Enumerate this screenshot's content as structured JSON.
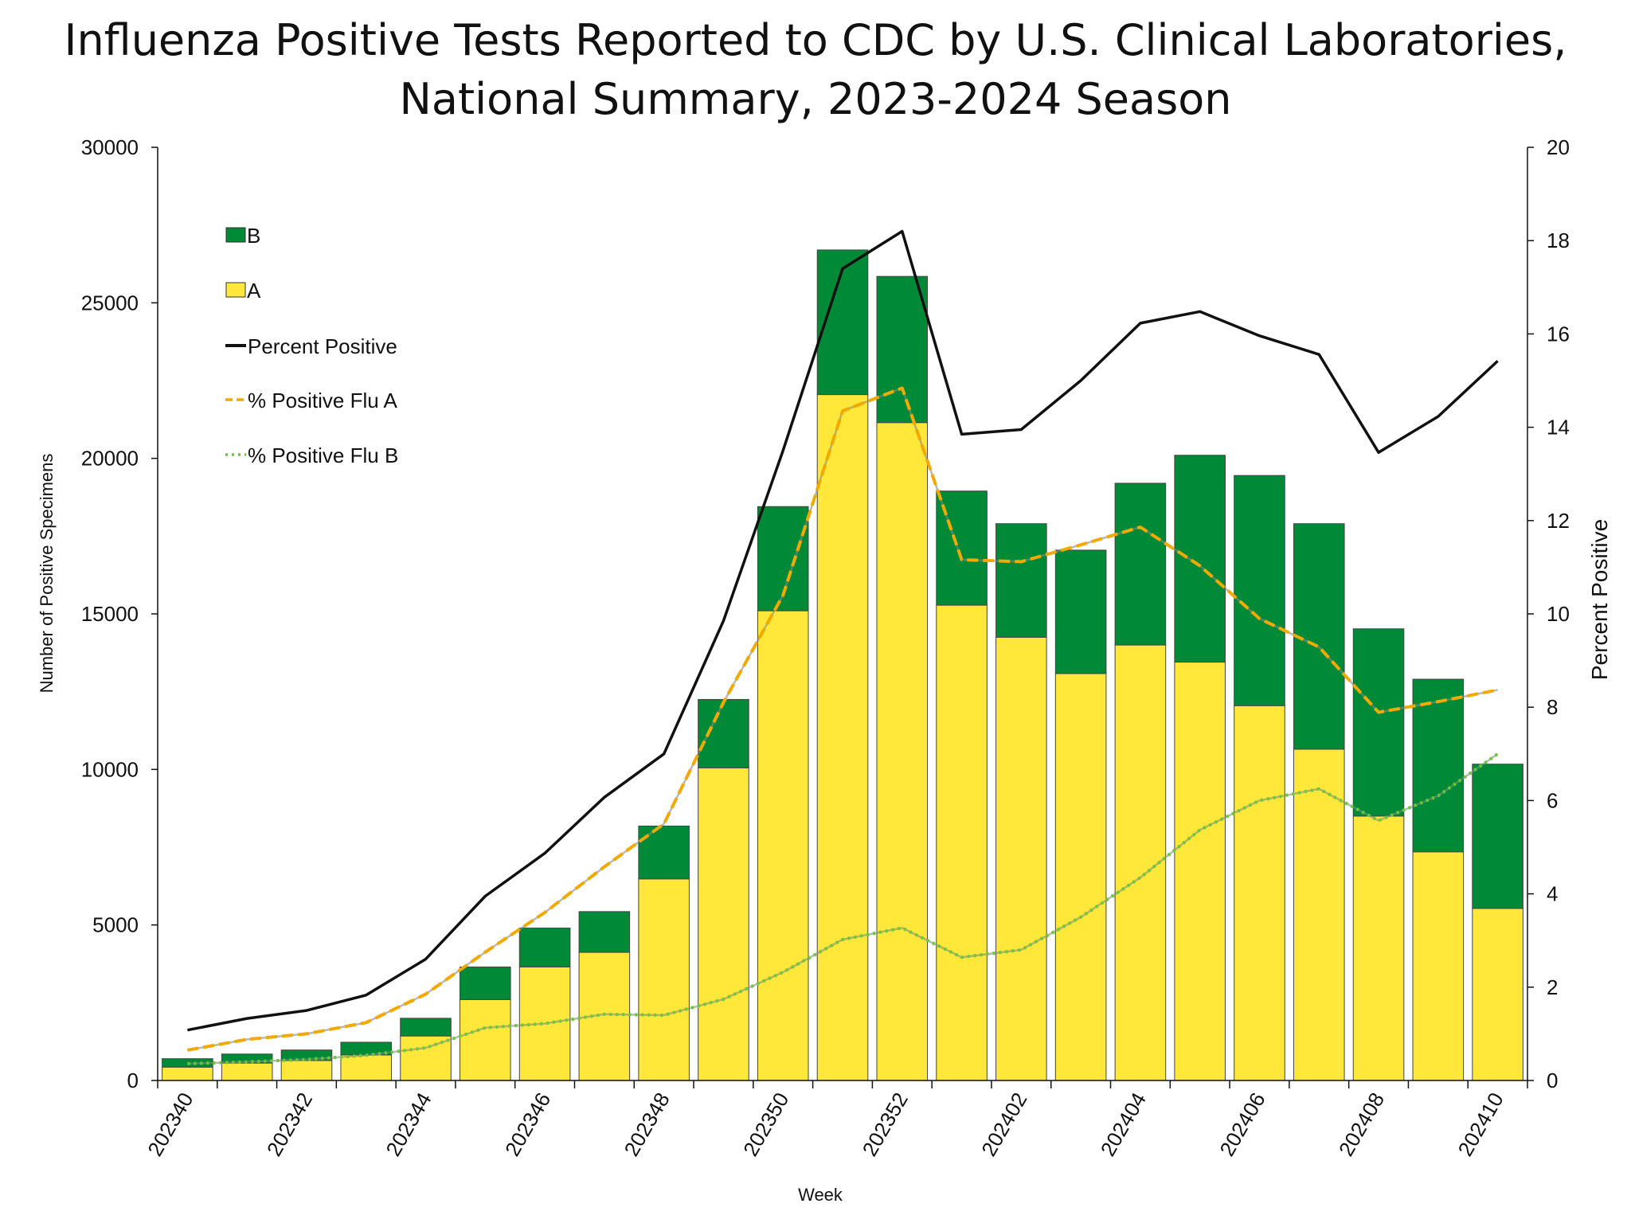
{
  "chart_data": {
    "type": "bar",
    "title_line1": "Influenza Positive Tests Reported to CDC by U.S. Clinical Laboratories,",
    "title_line2": "National Summary, 2023-2024 Season",
    "xlabel": "Week",
    "ylabel": "Number of Positive Specimens",
    "y2label": "Percent Positive",
    "ylim": [
      0,
      30000
    ],
    "y2lim": [
      0,
      20
    ],
    "yticks": [
      "0",
      "5000",
      "10000",
      "15000",
      "20000",
      "25000",
      "30000"
    ],
    "y2ticks": [
      "0",
      "2",
      "4",
      "6",
      "8",
      "10",
      "12",
      "14",
      "16",
      "18",
      "20"
    ],
    "grid": false,
    "legend_placement": "top-left",
    "categories": [
      "202340",
      "202341",
      "202342",
      "202343",
      "202344",
      "202345",
      "202346",
      "202347",
      "202348",
      "202349",
      "202350",
      "202351",
      "202352",
      "202401",
      "202402",
      "202403",
      "202404",
      "202405",
      "202406",
      "202407",
      "202408",
      "202409",
      "202410"
    ],
    "xtick_labels": [
      "202340",
      "202342",
      "202344",
      "202346",
      "202348",
      "202350",
      "202352",
      "202402",
      "202404",
      "202406",
      "202408",
      "202410"
    ],
    "series": [
      {
        "name": "A",
        "kind": "stacked-bar",
        "axis": "left",
        "color": "#ffe83a",
        "values": [
          430,
          560,
          640,
          820,
          1430,
          2600,
          3650,
          4120,
          6480,
          10050,
          15100,
          22050,
          21150,
          15280,
          14250,
          13080,
          14000,
          13450,
          12050,
          10650,
          8500,
          7350,
          5530
        ]
      },
      {
        "name": "B",
        "kind": "stacked-bar",
        "axis": "left",
        "color": "#008a37",
        "values": [
          270,
          290,
          340,
          410,
          570,
          1050,
          1250,
          1310,
          1700,
          2200,
          3350,
          4650,
          4700,
          3670,
          3650,
          3970,
          5200,
          6650,
          7400,
          7250,
          6020,
          5550,
          4640
        ]
      },
      {
        "name": "Percent Positive",
        "kind": "line",
        "axis": "right",
        "color": "#111111",
        "style": "solid",
        "values": [
          1.08,
          1.33,
          1.5,
          1.83,
          2.6,
          3.95,
          4.87,
          6.07,
          7.0,
          9.85,
          13.5,
          17.4,
          18.2,
          13.85,
          13.95,
          15.0,
          16.23,
          16.48,
          15.96,
          15.56,
          13.46,
          14.23,
          15.42
        ]
      },
      {
        "name": "% Positive Flu A",
        "kind": "line",
        "axis": "right",
        "color": "#f2a900",
        "style": "dashed",
        "values": [
          0.65,
          0.88,
          1.0,
          1.24,
          1.85,
          2.75,
          3.6,
          4.58,
          5.5,
          8.1,
          10.4,
          14.35,
          14.84,
          11.16,
          11.12,
          11.48,
          11.86,
          11.03,
          9.9,
          9.29,
          7.89,
          8.12,
          8.37
        ]
      },
      {
        "name": "% Positive Flu B",
        "kind": "line",
        "axis": "right",
        "color": "#66cc33",
        "style": "dotted",
        "values": [
          0.36,
          0.4,
          0.45,
          0.54,
          0.7,
          1.13,
          1.22,
          1.42,
          1.4,
          1.74,
          2.32,
          3.02,
          3.27,
          2.64,
          2.8,
          3.5,
          4.35,
          5.37,
          6.0,
          6.25,
          5.57,
          6.1,
          7.0
        ]
      }
    ]
  }
}
